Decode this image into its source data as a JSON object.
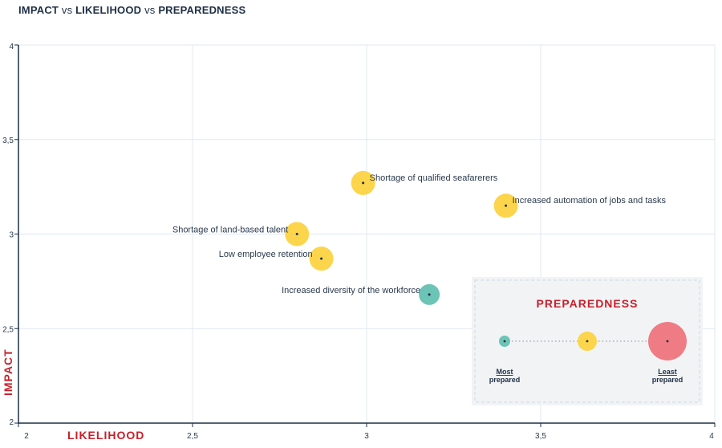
{
  "chart_data": {
    "type": "scatter",
    "title_parts": [
      "IMPACT",
      "vs",
      "LIKELIHOOD",
      "vs",
      "PREPAREDNESS"
    ],
    "xlabel": "LIKELIHOOD",
    "ylabel": "IMPACT",
    "xlim": [
      2,
      4
    ],
    "ylim": [
      2,
      4
    ],
    "x_ticks": [
      {
        "value": 2,
        "label": "2"
      },
      {
        "value": 2.5,
        "label": "2,5"
      },
      {
        "value": 3,
        "label": "3"
      },
      {
        "value": 3.5,
        "label": "3,5"
      },
      {
        "value": 4,
        "label": "4"
      }
    ],
    "y_ticks": [
      {
        "value": 2,
        "label": "2"
      },
      {
        "value": 2.5,
        "label": "2,5"
      },
      {
        "value": 3,
        "label": "3"
      },
      {
        "value": 3.5,
        "label": "3,5"
      },
      {
        "value": 4,
        "label": "4"
      }
    ],
    "grid": true,
    "points": [
      {
        "label": "Shortage of qualified seafarerers",
        "x": 2.99,
        "y": 3.27,
        "preparedness": "medium",
        "label_side": "right"
      },
      {
        "label": "Increased automation of jobs and tasks",
        "x": 3.4,
        "y": 3.15,
        "preparedness": "medium",
        "label_side": "right"
      },
      {
        "label": "Shortage of land-based talent",
        "x": 2.8,
        "y": 3.0,
        "preparedness": "medium",
        "label_side": "left"
      },
      {
        "label": "Low employee retention",
        "x": 2.87,
        "y": 2.87,
        "preparedness": "medium",
        "label_side": "left"
      },
      {
        "label": "Increased diversity of the workforce",
        "x": 3.18,
        "y": 2.68,
        "preparedness": "most",
        "label_side": "left"
      }
    ],
    "legend": {
      "title": "PREPAREDNESS",
      "placement": "bottom-right",
      "items": [
        {
          "key": "most",
          "label_line1": "Most",
          "label_line2": "prepared"
        },
        {
          "key": "medium",
          "label_line1": "",
          "label_line2": ""
        },
        {
          "key": "least",
          "label_line1": "Least",
          "label_line2": "prepared"
        }
      ]
    },
    "colors": {
      "most": "#6cc4b6",
      "medium": "#fcd54c",
      "least": "#ef7b84",
      "axis": "#1e2f45",
      "grid": "#dfe9f2",
      "accent": "#c8202b"
    }
  }
}
